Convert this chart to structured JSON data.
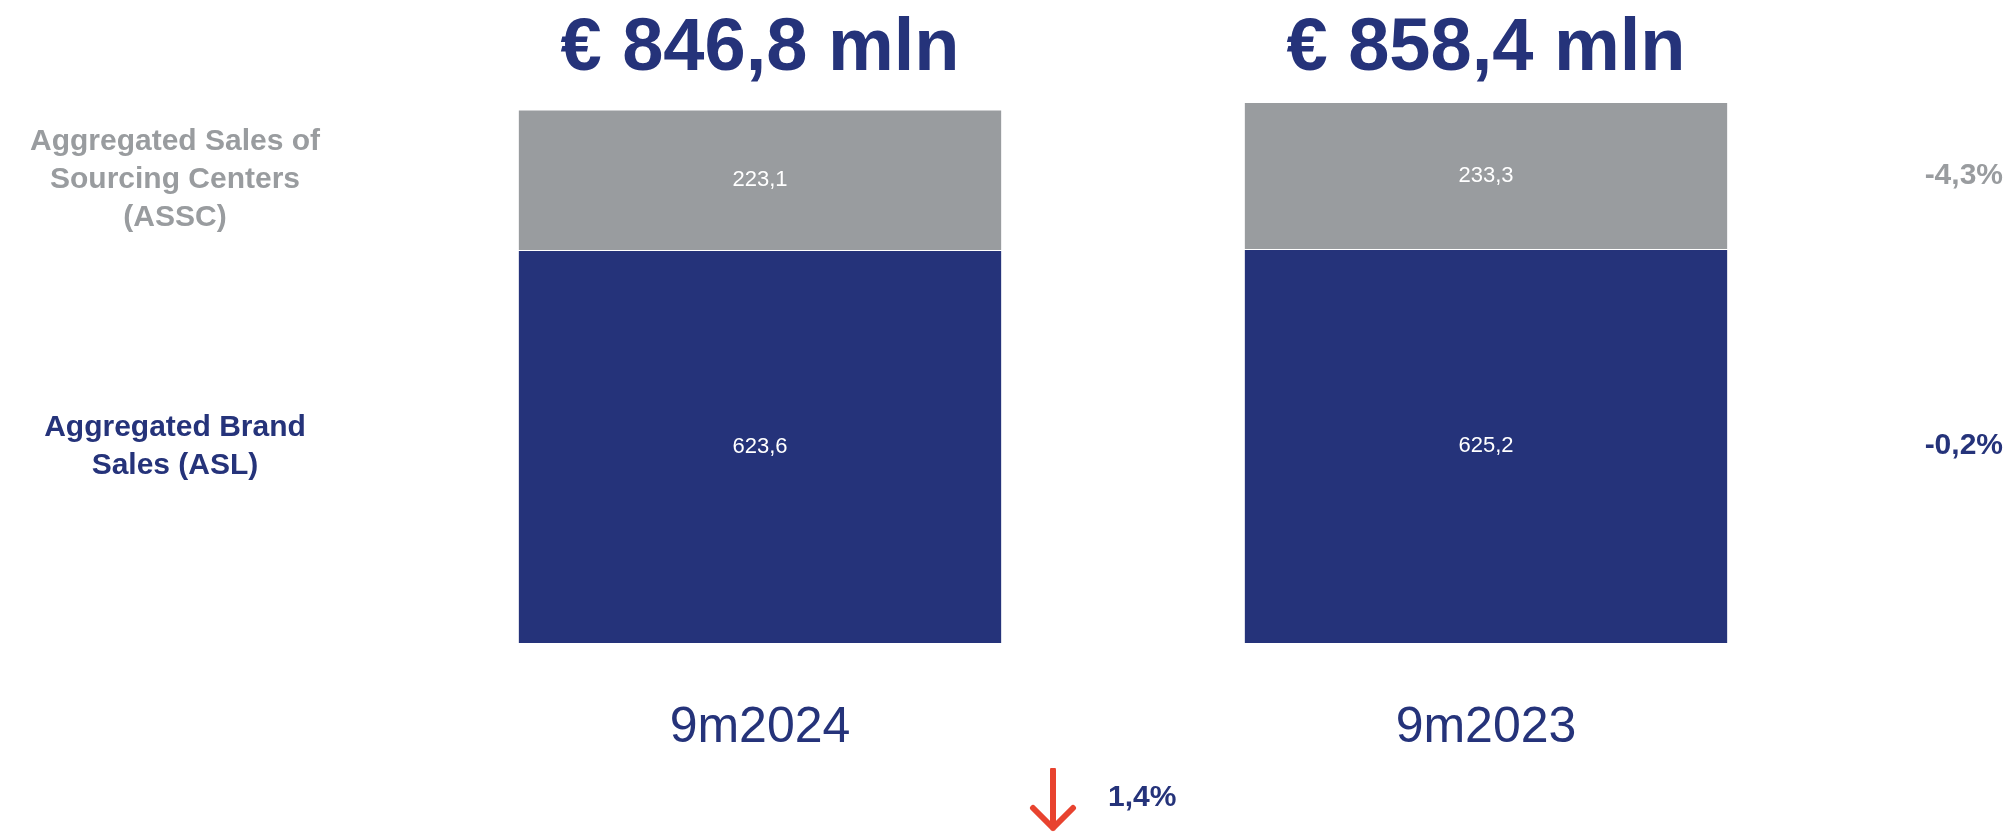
{
  "chart_data": {
    "type": "bar",
    "stacked": true,
    "categories": [
      "9m2024",
      "9m2023"
    ],
    "series": [
      {
        "name": "Aggregated Brand Sales (ASL)",
        "color": "#25337a",
        "values": [
          623.6,
          625.2
        ],
        "value_labels": [
          "623,6",
          "625,2"
        ]
      },
      {
        "name": "Aggregated Sales of Sourcing Centers (ASSC)",
        "color": "#999c9f",
        "values": [
          223.1,
          233.3
        ],
        "value_labels": [
          "223,1",
          "233,3"
        ]
      }
    ],
    "totals": [
      "€ 846,8 mln",
      "€ 858,4 mln"
    ],
    "annotations": [
      "-0,2%",
      "-4,3%",
      "1,4%"
    ],
    "grid": false,
    "legend": false
  }
}
